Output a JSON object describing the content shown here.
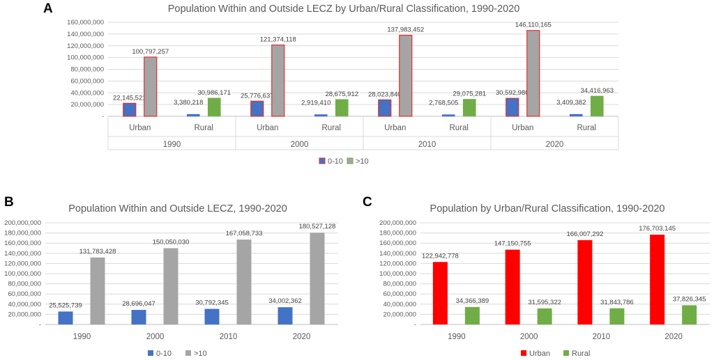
{
  "colors": {
    "blue": "#4472C4",
    "gray": "#A5A5A5",
    "green": "#70AD47",
    "red": "#FF0000",
    "outline_red": "#E03030"
  },
  "chart_data": [
    {
      "panel": "A",
      "type": "bar",
      "title": "Population Within and Outside LECZ by Urban/Rural Classification, 1990-2020",
      "years": [
        "1990",
        "2000",
        "2010",
        "2020"
      ],
      "subcategories": [
        "Urban",
        "Rural"
      ],
      "categories": [
        "1990 Urban",
        "1990 Rural",
        "2000 Urban",
        "2000 Rural",
        "2010 Urban",
        "2010 Rural",
        "2020 Urban",
        "2020 Rural"
      ],
      "series": [
        {
          "name": "0-10",
          "values": [
            22145521,
            3380218,
            25776637,
            2919410,
            28023840,
            2768505,
            30592980,
            3409382
          ],
          "labels": [
            "22,145,521",
            "3,380,218",
            "25,776,637",
            "2,919,410",
            "28,023,840",
            "2,768,505",
            "30,592,980",
            "3,409,382"
          ]
        },
        {
          "name": ">10",
          "values": [
            100797257,
            30986171,
            121374118,
            28675912,
            137983452,
            29075281,
            146110165,
            34416963
          ],
          "labels": [
            "100,797,257",
            "30,986,171",
            "121,374,118",
            "28,675,912",
            "137,983,452",
            "29,075,281",
            "146,110,165",
            "34,416,963"
          ]
        }
      ],
      "ylim": [
        0,
        160000000
      ],
      "yticks": [
        "-",
        "20,000,000",
        "40,000,000",
        "60,000,000",
        "80,000,000",
        "100,000,000",
        "120,000,000",
        "140,000,000",
        "160,000,000"
      ],
      "legend": [
        "0-10",
        ">10"
      ]
    },
    {
      "panel": "B",
      "type": "bar",
      "title": "Population Within and Outside LECZ, 1990-2020",
      "categories": [
        "1990",
        "2000",
        "2010",
        "2020"
      ],
      "series": [
        {
          "name": "0-10",
          "values": [
            25525739,
            28696047,
            30792345,
            34002362
          ],
          "labels": [
            "25,525,739",
            "28,696,047",
            "30,792,345",
            "34,002,362"
          ]
        },
        {
          "name": ">10",
          "values": [
            131783428,
            150050030,
            167058733,
            180527128
          ],
          "labels": [
            "131,783,428",
            "150,050,030",
            "167,058,733",
            "180,527,128"
          ]
        }
      ],
      "ylim": [
        0,
        200000000
      ],
      "yticks": [
        "-",
        "20,000,000",
        "40,000,000",
        "60,000,000",
        "80,000,000",
        "100,000,000",
        "120,000,000",
        "140,000,000",
        "160,000,000",
        "180,000,000",
        "200,000,000"
      ],
      "legend": [
        "0-10",
        ">10"
      ]
    },
    {
      "panel": "C",
      "type": "bar",
      "title": "Population by Urban/Rural Classification, 1990-2020",
      "categories": [
        "1990",
        "2000",
        "2010",
        "2020"
      ],
      "series": [
        {
          "name": "Urban",
          "values": [
            122942778,
            147150755,
            166007292,
            176703145
          ],
          "labels": [
            "122,942,778",
            "147,150,755",
            "166,007,292",
            "176,703,145"
          ]
        },
        {
          "name": "Rural",
          "values": [
            34366389,
            31595322,
            31843786,
            37826345
          ],
          "labels": [
            "34,366,389",
            "31,595,322",
            "31,843,786",
            "37,826,345"
          ]
        }
      ],
      "ylim": [
        0,
        200000000
      ],
      "yticks": [
        "-",
        "20,000,000",
        "40,000,000",
        "60,000,000",
        "80,000,000",
        "100,000,000",
        "120,000,000",
        "140,000,000",
        "160,000,000",
        "180,000,000",
        "200,000,000"
      ],
      "legend": [
        "Urban",
        "Rural"
      ]
    }
  ]
}
